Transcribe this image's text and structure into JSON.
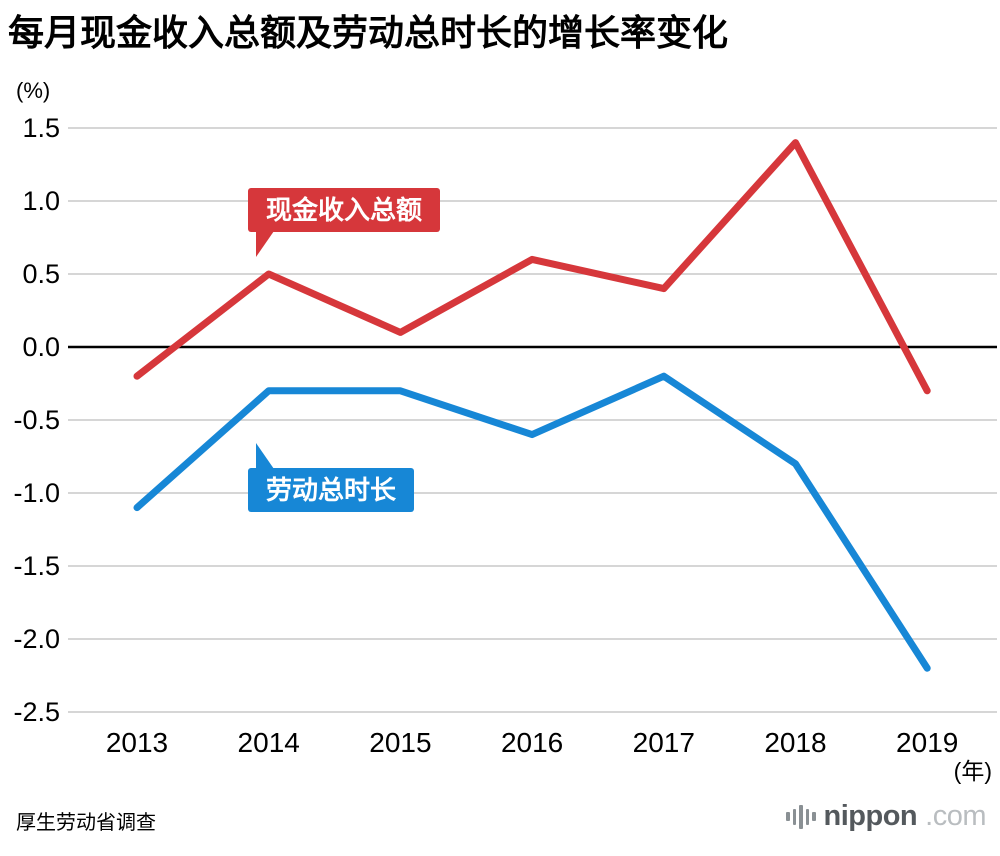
{
  "title": "每月现金收入总额及劳动总时长的增长率变化",
  "y_unit": "(%)",
  "x_unit": "(年)",
  "source": "厚生劳动省调查",
  "logo": {
    "icon": "waveform-icon",
    "name": "nippon",
    "tld": ".com"
  },
  "colors": {
    "income": "#d6373b",
    "hours": "#1787d6",
    "grid": "#c8c8c8",
    "zero": "#000000",
    "text": "#000000"
  },
  "chart_data": {
    "type": "line",
    "title": "每月现金收入总额及劳动总时长的增长率变化",
    "xlabel": "(年)",
    "ylabel": "(%)",
    "categories": [
      "2013",
      "2014",
      "2015",
      "2016",
      "2017",
      "2018",
      "2019"
    ],
    "series": [
      {
        "name": "现金收入总额",
        "color_key": "income",
        "values": [
          -0.2,
          0.5,
          0.1,
          0.6,
          0.4,
          1.4,
          -0.3
        ]
      },
      {
        "name": "劳动总时长",
        "color_key": "hours",
        "values": [
          -1.1,
          -0.3,
          -0.3,
          -0.6,
          -0.2,
          -0.8,
          -2.2
        ]
      }
    ],
    "yticks": [
      1.5,
      1.0,
      0.5,
      0.0,
      -0.5,
      -1.0,
      -1.5,
      -2.0,
      -2.5
    ],
    "ylim": [
      -2.5,
      1.5
    ],
    "grid": true,
    "legend": "inline-callouts"
  }
}
